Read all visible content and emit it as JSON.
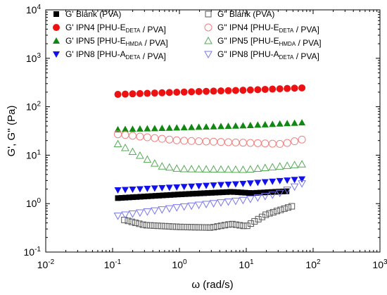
{
  "chart_data": {
    "type": "scatter",
    "title": "",
    "xlabel": "ω (rad/s)",
    "ylabel": "G', G'' (Pa)",
    "x_scale": "log",
    "y_scale": "log",
    "xlim": [
      0.01,
      1000
    ],
    "ylim": [
      0.1,
      10000
    ],
    "x_ticks": [
      0.01,
      0.1,
      1,
      10,
      100,
      1000
    ],
    "y_ticks": [
      0.1,
      1,
      10,
      100,
      1000,
      10000
    ],
    "x_tick_labels": [
      {
        "base": "10",
        "exp": "-2"
      },
      {
        "base": "10",
        "exp": "-1"
      },
      {
        "base": "10",
        "exp": "0"
      },
      {
        "base": "10",
        "exp": "1"
      },
      {
        "base": "10",
        "exp": "2"
      },
      {
        "base": "10",
        "exp": "3"
      }
    ],
    "y_tick_labels": [
      {
        "base": "10",
        "exp": "-1"
      },
      {
        "base": "10",
        "exp": "0"
      },
      {
        "base": "10",
        "exp": "1"
      },
      {
        "base": "10",
        "exp": "2"
      },
      {
        "base": "10",
        "exp": "3"
      },
      {
        "base": "10",
        "exp": "4"
      }
    ],
    "grid": false,
    "legend_placement": "top, two columns",
    "series": [
      {
        "name": "G' Blank (PVA)",
        "legend_parts": [
          {
            "t": "G' Blank (PVA)"
          }
        ],
        "marker": "square",
        "filled": true,
        "color": "#000000",
        "x_range": [
          0.12,
          40
        ],
        "n_points": 46,
        "y_anchors": [
          [
            0.12,
            1.3
          ],
          [
            1,
            1.55
          ],
          [
            6,
            1.75
          ],
          [
            12,
            1.65
          ],
          [
            40,
            1.8
          ]
        ]
      },
      {
        "name": "G' IPN4 [PHU-EDETA / PVA]",
        "legend_parts": [
          {
            "t": "G' IPN4 [PHU-E"
          },
          {
            "t": "DETA",
            "sub": true
          },
          {
            "t": " / PVA]"
          }
        ],
        "marker": "circle",
        "filled": true,
        "color": "#ee1111",
        "x_range": [
          0.12,
          68
        ],
        "n_points": 26,
        "y_anchors": [
          [
            0.12,
            180
          ],
          [
            1,
            200
          ],
          [
            10,
            220
          ],
          [
            68,
            245
          ]
        ]
      },
      {
        "name": "G' IPN5 [PHU-EHMDA / PVA]",
        "legend_parts": [
          {
            "t": "G' IPN5 [PHU-E"
          },
          {
            "t": "HMDA",
            "sub": true
          },
          {
            "t": " / PVA]"
          }
        ],
        "marker": "triangle-up",
        "filled": true,
        "color": "#118811",
        "x_range": [
          0.12,
          68
        ],
        "n_points": 26,
        "y_anchors": [
          [
            0.12,
            34
          ],
          [
            1,
            37
          ],
          [
            10,
            41
          ],
          [
            68,
            47
          ]
        ]
      },
      {
        "name": "G' IPN8 [PHU-ADETA / PVA]",
        "legend_parts": [
          {
            "t": "G' IPN8 [PHU-A"
          },
          {
            "t": "DETA",
            "sub": true
          },
          {
            "t": " / PVA]"
          }
        ],
        "marker": "triangle-down",
        "filled": true,
        "color": "#1111ee",
        "x_range": [
          0.12,
          68
        ],
        "n_points": 26,
        "y_anchors": [
          [
            0.12,
            1.9
          ],
          [
            1,
            2.2
          ],
          [
            10,
            2.6
          ],
          [
            68,
            3.2
          ]
        ]
      },
      {
        "name": "G\" Blank (PVA)",
        "legend_parts": [
          {
            "t": "G\" Blank (PVA)"
          }
        ],
        "marker": "square",
        "filled": false,
        "color": "#555555",
        "x_range": [
          0.15,
          48
        ],
        "n_points": 46,
        "y_anchors": [
          [
            0.15,
            0.46
          ],
          [
            0.3,
            0.36
          ],
          [
            1,
            0.33
          ],
          [
            3,
            0.32
          ],
          [
            6,
            0.38
          ],
          [
            10,
            0.34
          ],
          [
            20,
            0.6
          ],
          [
            48,
            0.88
          ]
        ]
      },
      {
        "name": "G\" IPN4 [PHU-EDETA / PVA]",
        "legend_parts": [
          {
            "t": "G\" IPN4 [PHU-E"
          },
          {
            "t": "DETA",
            "sub": true
          },
          {
            "t": " / PVA]"
          }
        ],
        "marker": "circle",
        "filled": false,
        "color": "#f08080",
        "x_range": [
          0.12,
          68
        ],
        "n_points": 26,
        "y_anchors": [
          [
            0.12,
            27
          ],
          [
            1,
            20
          ],
          [
            10,
            18
          ],
          [
            35,
            17
          ],
          [
            68,
            21
          ]
        ]
      },
      {
        "name": "G\" IPN5 [PHU-EHMDA / PVA]",
        "legend_parts": [
          {
            "t": "G\" IPN5 [PHU-E"
          },
          {
            "t": "HMDA",
            "sub": true
          },
          {
            "t": " / PVA]"
          }
        ],
        "marker": "triangle-up",
        "filled": false,
        "color": "#55aa55",
        "x_range": [
          0.12,
          68
        ],
        "n_points": 26,
        "y_anchors": [
          [
            0.12,
            17
          ],
          [
            0.25,
            10
          ],
          [
            0.5,
            6
          ],
          [
            1,
            5.2
          ],
          [
            10,
            5.0
          ],
          [
            68,
            6.5
          ]
        ]
      },
      {
        "name": "G\" IPN8 [PHU-ADETA / PVA]",
        "legend_parts": [
          {
            "t": "G\" IPN8 [PHU-A"
          },
          {
            "t": "DETA",
            "sub": true
          },
          {
            "t": " / PVA]"
          }
        ],
        "marker": "triangle-down",
        "filled": false,
        "color": "#7777ee",
        "x_range": [
          0.12,
          68
        ],
        "n_points": 26,
        "y_anchors": [
          [
            0.12,
            0.56
          ],
          [
            1,
            0.85
          ],
          [
            10,
            1.2
          ],
          [
            30,
            1.6
          ],
          [
            68,
            2.6
          ]
        ]
      }
    ]
  }
}
